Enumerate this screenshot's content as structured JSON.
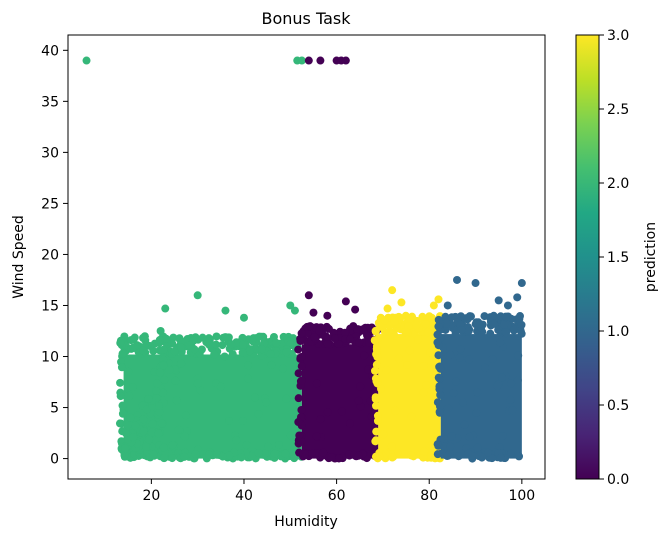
{
  "chart_data": {
    "type": "scatter",
    "title": "Bonus Task",
    "xlabel": "Humidity",
    "ylabel": "Wind Speed",
    "xlim": [
      2,
      105
    ],
    "ylim": [
      -2,
      41.5
    ],
    "xticks": [
      20,
      40,
      60,
      80,
      100
    ],
    "yticks": [
      0,
      5,
      10,
      15,
      20,
      25,
      30,
      35,
      40
    ],
    "colorbar": {
      "label": "prediction",
      "range": [
        0,
        3
      ],
      "ticks": [
        "0.0",
        "0.5",
        "1.0",
        "1.5",
        "2.0",
        "2.5",
        "3.0"
      ],
      "colormap": "viridis"
    },
    "clusters": [
      {
        "prediction": 2,
        "color": "#35b779",
        "x_range": [
          14,
          52.5
        ],
        "y_range": [
          0,
          12
        ],
        "density": 0.9
      },
      {
        "prediction": 0,
        "color": "#440154",
        "x_range": [
          52.5,
          69
        ],
        "y_range": [
          0,
          13
        ],
        "density": 1.0
      },
      {
        "prediction": 3,
        "color": "#fde725",
        "x_range": [
          69,
          82.5
        ],
        "y_range": [
          0,
          14
        ],
        "density": 1.0
      },
      {
        "prediction": 1,
        "color": "#31688e",
        "x_range": [
          82.5,
          100
        ],
        "y_range": [
          0,
          14
        ],
        "density": 1.0
      }
    ],
    "outliers": [
      {
        "x": 6,
        "y": 39,
        "prediction": 2
      },
      {
        "x": 51.5,
        "y": 39,
        "prediction": 2
      },
      {
        "x": 52.5,
        "y": 39,
        "prediction": 2
      },
      {
        "x": 54,
        "y": 39,
        "prediction": 0
      },
      {
        "x": 56.5,
        "y": 39,
        "prediction": 0
      },
      {
        "x": 60,
        "y": 39,
        "prediction": 0
      },
      {
        "x": 61,
        "y": 39,
        "prediction": 0
      },
      {
        "x": 62,
        "y": 39,
        "prediction": 0
      },
      {
        "x": 22,
        "y": 12.5,
        "prediction": 2
      },
      {
        "x": 23,
        "y": 14.7,
        "prediction": 2
      },
      {
        "x": 30,
        "y": 16,
        "prediction": 2
      },
      {
        "x": 36,
        "y": 14.5,
        "prediction": 2
      },
      {
        "x": 40,
        "y": 13.8,
        "prediction": 2
      },
      {
        "x": 50,
        "y": 15,
        "prediction": 2
      },
      {
        "x": 51,
        "y": 14.5,
        "prediction": 2
      },
      {
        "x": 15,
        "y": 8.5,
        "prediction": 2
      },
      {
        "x": 16,
        "y": 7,
        "prediction": 2
      },
      {
        "x": 14.5,
        "y": 2.5,
        "prediction": 2
      },
      {
        "x": 15.5,
        "y": 4,
        "prediction": 2
      },
      {
        "x": 54,
        "y": 16,
        "prediction": 0
      },
      {
        "x": 55,
        "y": 14.3,
        "prediction": 0
      },
      {
        "x": 58,
        "y": 14,
        "prediction": 0
      },
      {
        "x": 62,
        "y": 15.4,
        "prediction": 0
      },
      {
        "x": 64,
        "y": 14.6,
        "prediction": 0
      },
      {
        "x": 72,
        "y": 16.5,
        "prediction": 3
      },
      {
        "x": 74,
        "y": 15.3,
        "prediction": 3
      },
      {
        "x": 71,
        "y": 14.7,
        "prediction": 3
      },
      {
        "x": 82,
        "y": 15.6,
        "prediction": 3
      },
      {
        "x": 81,
        "y": 15,
        "prediction": 3
      },
      {
        "x": 86,
        "y": 17.5,
        "prediction": 1
      },
      {
        "x": 90,
        "y": 17.2,
        "prediction": 1
      },
      {
        "x": 100,
        "y": 17.2,
        "prediction": 1
      },
      {
        "x": 99,
        "y": 15.8,
        "prediction": 1
      },
      {
        "x": 95,
        "y": 15.5,
        "prediction": 1
      },
      {
        "x": 97,
        "y": 15,
        "prediction": 1
      },
      {
        "x": 84,
        "y": 15,
        "prediction": 1
      }
    ]
  }
}
